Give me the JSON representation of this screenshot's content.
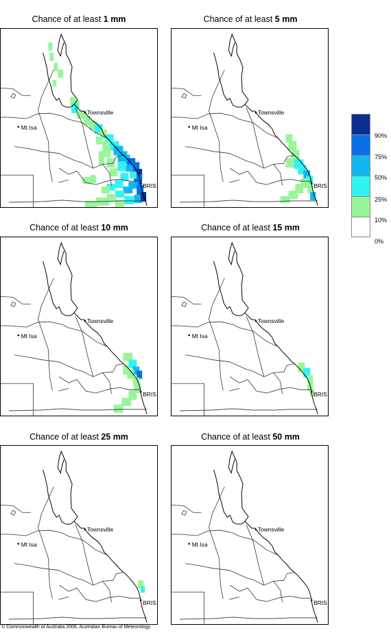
{
  "panels": [
    {
      "prefix": "Chance of at least ",
      "amount": "1 mm",
      "level": 0
    },
    {
      "prefix": "Chance of at least ",
      "amount": "5 mm",
      "level": 1
    },
    {
      "prefix": "Chance of at least ",
      "amount": "10 mm",
      "level": 2
    },
    {
      "prefix": "Chance of at least ",
      "amount": "15 mm",
      "level": 3
    },
    {
      "prefix": "Chance of at least ",
      "amount": "25 mm",
      "level": 4
    },
    {
      "prefix": "Chance of at least ",
      "amount": "50 mm",
      "level": 5
    }
  ],
  "places": {
    "townsville": "Townsville",
    "mt_isa": "Mt Isa",
    "brisbane": "BRIS"
  },
  "legend": {
    "labels": [
      "90%",
      "75%",
      "50%",
      "25%",
      "10%",
      "0%"
    ],
    "colors": [
      "#0a2f8f",
      "#0a6fe8",
      "#10b8ee",
      "#33f2f2",
      "#99f59a",
      "#ffffff"
    ]
  },
  "footer": "© Commonwealth of Australia 2006, Australian Bureau of Meteorology"
}
